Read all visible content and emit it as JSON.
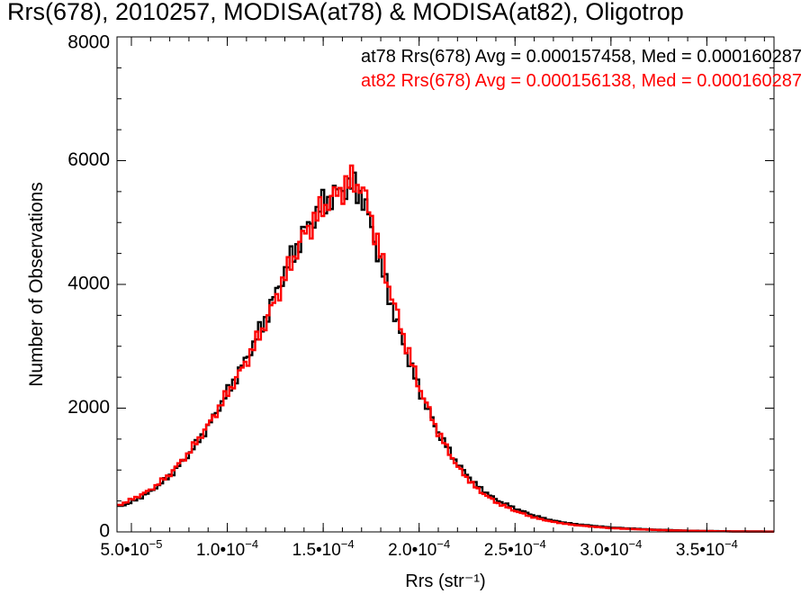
{
  "chart_data": {
    "type": "histogram",
    "title": "Rrs(678), 2010257, MODISA(at78) & MODISA(at82), Oligotrop",
    "xlabel": "Rrs (str⁻¹)",
    "ylabel": "Number of Observations",
    "xlim": [
      4.25e-05,
      0.000385
    ],
    "ylim": [
      0,
      8000
    ],
    "yticks": [
      0,
      2000,
      4000,
      6000,
      8000
    ],
    "ytick_labels": [
      "0",
      "2000",
      "4000",
      "6000",
      "8000"
    ],
    "xticks": [
      5e-05,
      0.0001,
      0.00015,
      0.0002,
      0.00025,
      0.0003,
      0.00035
    ],
    "xtick_labels": [
      {
        "mant": "5.0•10",
        "exp": "−5"
      },
      {
        "mant": "1.0•10",
        "exp": "−4"
      },
      {
        "mant": "1.5•10",
        "exp": "−4"
      },
      {
        "mant": "2.0•10",
        "exp": "−4"
      },
      {
        "mant": "2.5•10",
        "exp": "−4"
      },
      {
        "mant": "3.0•10",
        "exp": "−4"
      },
      {
        "mant": "3.5•10",
        "exp": "−4"
      }
    ],
    "grid": false,
    "legend_position": "top-right",
    "bin_width": 1.5e-06,
    "series": [
      {
        "name": "at78",
        "color": "#000000",
        "stats_text": "at78 Rrs(678) Avg = 0.000157458, Med = 0.000160287",
        "points": [
          [
            4.25e-05,
            400
          ],
          [
            5e-05,
            480
          ],
          [
            6e-05,
            650
          ],
          [
            7e-05,
            900
          ],
          [
            8e-05,
            1250
          ],
          [
            9e-05,
            1700
          ],
          [
            0.0001,
            2250
          ],
          [
            0.00011,
            2800
          ],
          [
            0.00012,
            3450
          ],
          [
            0.00013,
            4200
          ],
          [
            0.00014,
            4850
          ],
          [
            0.00015,
            5300
          ],
          [
            0.00016,
            5550
          ],
          [
            0.000165,
            5600
          ],
          [
            0.00017,
            5450
          ],
          [
            0.000175,
            4950
          ],
          [
            0.00018,
            4300
          ],
          [
            0.00019,
            3200
          ],
          [
            0.0002,
            2300
          ],
          [
            0.00021,
            1600
          ],
          [
            0.00022,
            1100
          ],
          [
            0.00023,
            750
          ],
          [
            0.00024,
            520
          ],
          [
            0.00025,
            380
          ],
          [
            0.00026,
            260
          ],
          [
            0.00027,
            180
          ],
          [
            0.00028,
            130
          ],
          [
            0.00029,
            100
          ],
          [
            0.0003,
            70
          ],
          [
            0.00032,
            40
          ],
          [
            0.00034,
            20
          ],
          [
            0.00036,
            10
          ],
          [
            0.000385,
            5
          ]
        ]
      },
      {
        "name": "at82",
        "color": "#ff0000",
        "stats_text": "at82 Rrs(678) Avg = 0.000156138, Med = 0.000160287",
        "points": [
          [
            4.25e-05,
            420
          ],
          [
            5e-05,
            520
          ],
          [
            6e-05,
            680
          ],
          [
            7e-05,
            930
          ],
          [
            8e-05,
            1280
          ],
          [
            9e-05,
            1720
          ],
          [
            0.0001,
            2230
          ],
          [
            0.00011,
            2760
          ],
          [
            0.00012,
            3380
          ],
          [
            0.00013,
            4120
          ],
          [
            0.00014,
            4800
          ],
          [
            0.00015,
            5250
          ],
          [
            0.00016,
            5550
          ],
          [
            0.000165,
            5680
          ],
          [
            0.00017,
            5580
          ],
          [
            0.000175,
            5100
          ],
          [
            0.00018,
            4450
          ],
          [
            0.00019,
            3350
          ],
          [
            0.0002,
            2350
          ],
          [
            0.00021,
            1600
          ],
          [
            0.00022,
            1050
          ],
          [
            0.00023,
            700
          ],
          [
            0.00024,
            480
          ],
          [
            0.00025,
            340
          ],
          [
            0.00026,
            230
          ],
          [
            0.00027,
            160
          ],
          [
            0.00028,
            115
          ],
          [
            0.00029,
            85
          ],
          [
            0.0003,
            60
          ],
          [
            0.00032,
            35
          ],
          [
            0.00034,
            18
          ],
          [
            0.00036,
            9
          ],
          [
            0.000385,
            4
          ]
        ]
      }
    ]
  }
}
